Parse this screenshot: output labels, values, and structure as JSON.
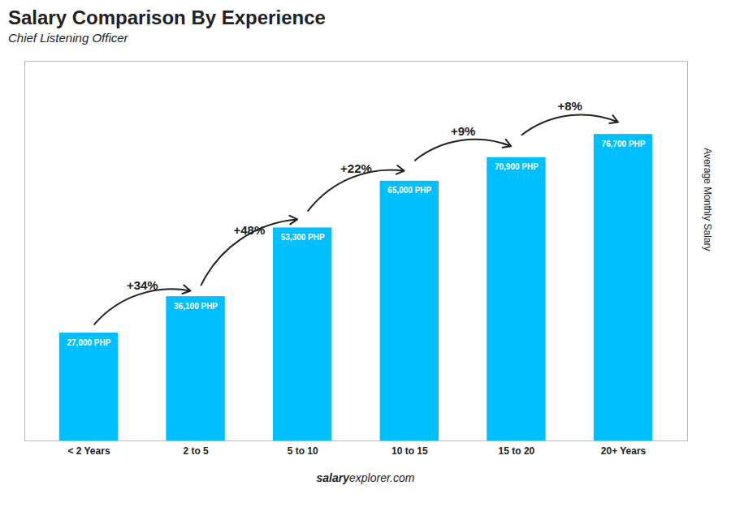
{
  "chart_data": {
    "type": "bar",
    "title": "Salary Comparison By Experience",
    "subtitle": "Chief Listening Officer",
    "categories": [
      "< 2 Years",
      "2 to 5",
      "5 to 10",
      "10 to 15",
      "15 to 20",
      "20+ Years"
    ],
    "values": [
      27000,
      36100,
      53300,
      65000,
      70900,
      76700
    ],
    "value_labels": [
      "27,000 PHP",
      "36,100 PHP",
      "53,300 PHP",
      "65,000 PHP",
      "70,900 PHP",
      "76,700 PHP"
    ],
    "data_labels": true,
    "color": "#00BFFF",
    "ylabel": "Average Monthly Salary",
    "ylim": [
      0,
      95000
    ],
    "tick_labels": "x",
    "grid": false,
    "annotations": [
      "+34%",
      "+48%",
      "+22%",
      "+9%",
      "+8%"
    ],
    "footer": [
      "salary",
      "explorer.com"
    ]
  }
}
